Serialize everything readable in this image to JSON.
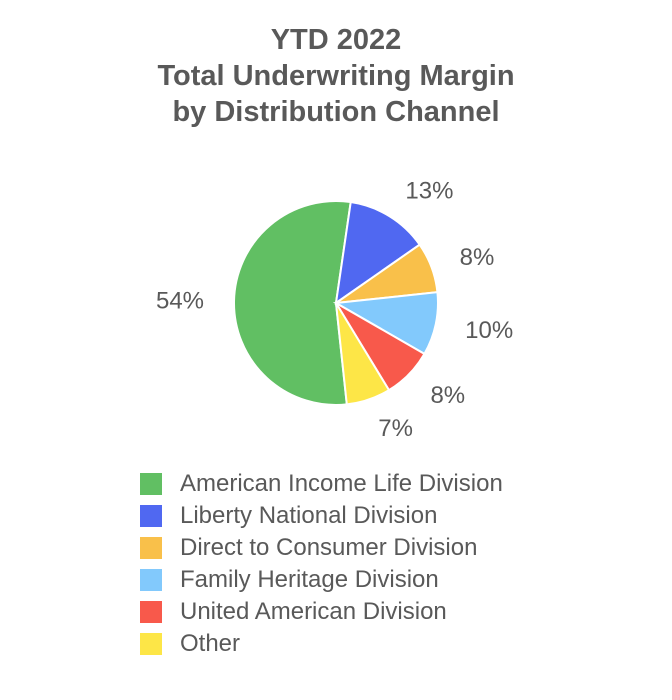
{
  "chart_data": {
    "type": "pie",
    "title": [
      "YTD 2022",
      "Total Underwriting Margin",
      "by Distribution Channel"
    ],
    "legend_position": "bottom",
    "series": [
      {
        "name": "American Income Life Division",
        "value": 54,
        "label": "54%",
        "color": "#61bf63"
      },
      {
        "name": "Liberty National Division",
        "value": 13,
        "label": "13%",
        "color": "#5068f1"
      },
      {
        "name": "Direct to Consumer Division",
        "value": 8,
        "label": "8%",
        "color": "#f9c04a"
      },
      {
        "name": "Family Heritage Division",
        "value": 10,
        "label": "10%",
        "color": "#82c9fc"
      },
      {
        "name": "United American Division",
        "value": 8,
        "label": "8%",
        "color": "#f8594b"
      },
      {
        "name": "Other",
        "value": 7,
        "label": "7%",
        "color": "#fde647"
      }
    ]
  }
}
